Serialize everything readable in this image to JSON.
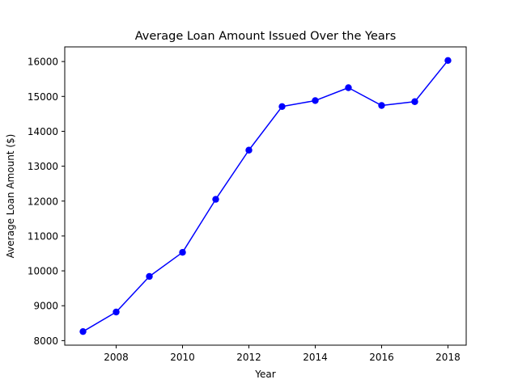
{
  "chart_data": {
    "type": "line",
    "title": "Average Loan Amount Issued Over the Years",
    "xlabel": "Year",
    "ylabel": "Average Loan Amount ($)",
    "x": [
      2007,
      2008,
      2009,
      2010,
      2011,
      2012,
      2013,
      2014,
      2015,
      2016,
      2017,
      2018
    ],
    "series": [
      {
        "values": [
          8260,
          8820,
          9840,
          10530,
          12050,
          13460,
          14710,
          14880,
          15250,
          14740,
          14850,
          16030
        ],
        "color": "#0000ff"
      }
    ],
    "xlim": [
      2006.45,
      2018.55
    ],
    "ylim": [
      7870,
      16420
    ],
    "xticks": [
      2008,
      2010,
      2012,
      2014,
      2016,
      2018
    ],
    "yticks": [
      8000,
      9000,
      10000,
      11000,
      12000,
      13000,
      14000,
      15000,
      16000
    ],
    "grid": false,
    "marker": "circle"
  }
}
